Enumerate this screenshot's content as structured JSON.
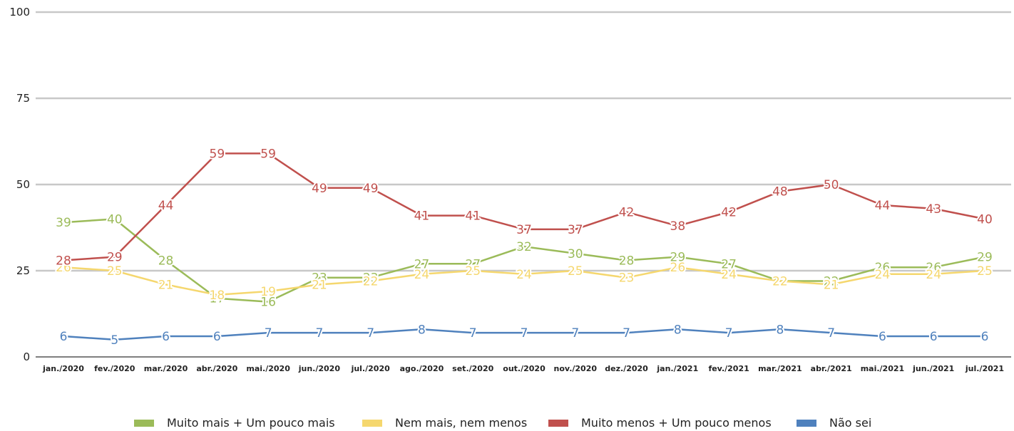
{
  "chart_data": {
    "type": "line",
    "categories": [
      "jan./2020",
      "fev./2020",
      "mar./2020",
      "abr./2020",
      "mai./2020",
      "jun./2020",
      "jul./2020",
      "ago./2020",
      "set./2020",
      "out./2020",
      "nov./2020",
      "dez./2020",
      "jan./2021",
      "fev./2021",
      "mar./2021",
      "abr./2021",
      "mai./2021",
      "jun./2021",
      "jul./2021"
    ],
    "ylim": [
      0,
      100
    ],
    "yticks": [
      0,
      25,
      50,
      75,
      100
    ],
    "grid": true,
    "legend_position": "bottom",
    "series": [
      {
        "name": "Muito mais + Um pouco mais",
        "color": "#9bbb59",
        "values": [
          39,
          40,
          28,
          17,
          16,
          23,
          23,
          27,
          27,
          32,
          30,
          28,
          29,
          27,
          22,
          22,
          26,
          26,
          29
        ]
      },
      {
        "name": "Nem mais, nem menos",
        "color": "#f5d76e",
        "values": [
          26,
          25,
          21,
          18,
          19,
          21,
          22,
          24,
          25,
          24,
          25,
          23,
          26,
          24,
          22,
          21,
          24,
          24,
          25
        ]
      },
      {
        "name": "Muito menos + Um pouco menos",
        "color": "#c0504d",
        "values": [
          28,
          29,
          44,
          59,
          59,
          49,
          49,
          41,
          41,
          37,
          37,
          42,
          38,
          42,
          48,
          50,
          44,
          43,
          40
        ]
      },
      {
        "name": "Não sei",
        "color": "#4f81bd",
        "values": [
          6,
          5,
          6,
          6,
          7,
          7,
          7,
          8,
          7,
          7,
          7,
          7,
          8,
          7,
          8,
          7,
          6,
          6,
          6
        ]
      }
    ]
  }
}
